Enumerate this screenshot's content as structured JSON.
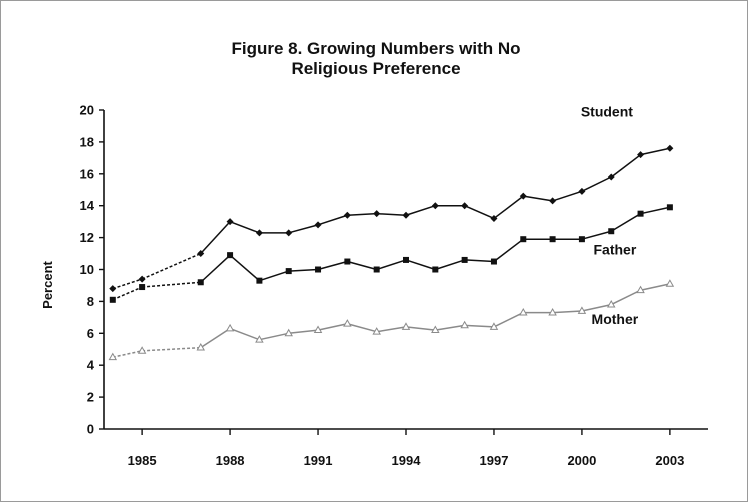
{
  "chart_data": {
    "type": "line",
    "title_line1": "Figure 8. Growing Numbers with No",
    "title_line2": "Religious Preference",
    "ylabel": "Percent",
    "xlabel": "",
    "ylim": [
      0,
      20
    ],
    "yticks": [
      0,
      2,
      4,
      6,
      8,
      10,
      12,
      14,
      16,
      18,
      20
    ],
    "xlim": [
      1983.7,
      2004.3
    ],
    "xticks": [
      1985,
      1988,
      1991,
      1994,
      1997,
      2000,
      2003
    ],
    "grid": false,
    "legend": "inline labels at right",
    "x": [
      1984,
      1985,
      1987,
      1988,
      1989,
      1990,
      1991,
      1992,
      1993,
      1994,
      1995,
      1996,
      1997,
      1998,
      1999,
      2000,
      2001,
      2002,
      2003
    ],
    "series": [
      {
        "name": "Student",
        "marker": "diamond",
        "color": "#111111",
        "values": [
          8.8,
          9.4,
          11.0,
          13.0,
          12.3,
          12.3,
          12.8,
          13.4,
          13.5,
          13.4,
          14.0,
          14.0,
          13.2,
          14.6,
          14.3,
          14.9,
          15.8,
          17.2,
          17.6
        ]
      },
      {
        "name": "Father",
        "marker": "square",
        "color": "#111111",
        "values": [
          8.1,
          8.9,
          9.2,
          10.9,
          9.3,
          9.9,
          10.0,
          10.5,
          10.0,
          10.6,
          10.0,
          10.6,
          10.5,
          11.9,
          11.9,
          11.9,
          12.4,
          13.5,
          13.9
        ]
      },
      {
        "name": "Mother",
        "marker": "triangle",
        "color": "#8a8a8a",
        "values": [
          4.5,
          4.9,
          5.1,
          6.3,
          5.6,
          6.0,
          6.2,
          6.6,
          6.1,
          6.4,
          6.2,
          6.5,
          6.4,
          7.3,
          7.3,
          7.4,
          7.8,
          8.7,
          9.1
        ]
      }
    ]
  }
}
